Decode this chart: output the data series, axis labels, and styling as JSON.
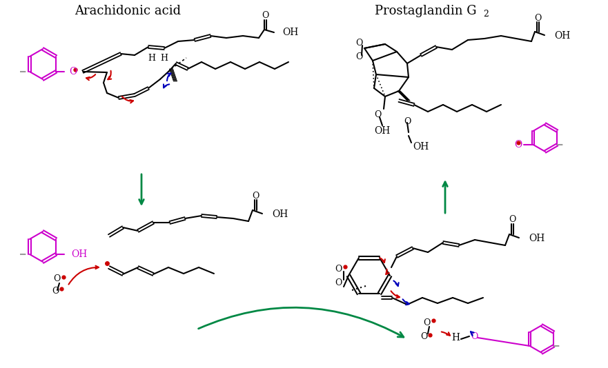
{
  "bg_color": "#ffffff",
  "magenta": "#cc00cc",
  "red": "#cc0000",
  "blue": "#0000bb",
  "green": "#008844",
  "black": "#000000",
  "gray": "#999999",
  "label_arachidonic": "Arachidonic acid",
  "label_prostaglandin": "Prostaglandin G",
  "label_prostaglandin_sub": "2"
}
